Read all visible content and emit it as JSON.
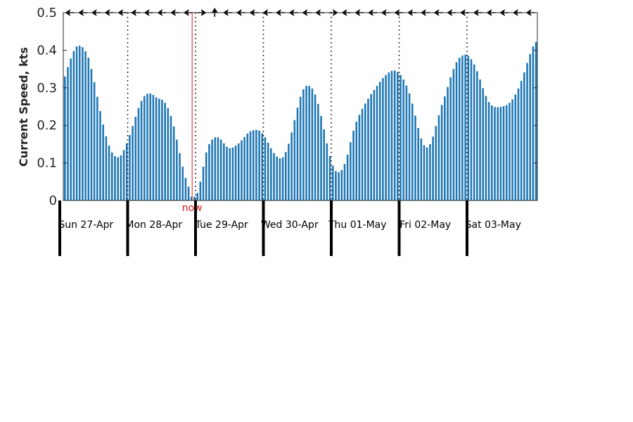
{
  "chart_data": {
    "type": "bar",
    "ylabel": "Current Speed, kts",
    "ylim": [
      0,
      0.5
    ],
    "yticks": [
      "0",
      "0.1",
      "0.2",
      "0.3",
      "0.4",
      "0.5"
    ],
    "days": [
      "Sun 27-Apr",
      "Mon 28-Apr",
      "Tue 29-Apr",
      "Wed 30-Apr",
      "Thu 01-May",
      "Fri 02-May",
      "Sat 03-May"
    ],
    "now_label": "now",
    "now_position_days": 1.95,
    "values_per_day": 24,
    "values": [
      0.33,
      0.355,
      0.378,
      0.398,
      0.41,
      0.412,
      0.408,
      0.397,
      0.38,
      0.35,
      0.315,
      0.276,
      0.238,
      0.202,
      0.171,
      0.146,
      0.128,
      0.118,
      0.115,
      0.12,
      0.134,
      0.152,
      0.174,
      0.198,
      0.223,
      0.246,
      0.265,
      0.278,
      0.284,
      0.285,
      0.281,
      0.275,
      0.271,
      0.268,
      0.26,
      0.246,
      0.225,
      0.197,
      0.162,
      0.126,
      0.09,
      0.06,
      0.037,
      0.01,
      0.01,
      0.02,
      0.05,
      0.09,
      0.128,
      0.15,
      0.162,
      0.168,
      0.168,
      0.162,
      0.152,
      0.143,
      0.139,
      0.141,
      0.146,
      0.152,
      0.16,
      0.169,
      0.178,
      0.184,
      0.187,
      0.188,
      0.186,
      0.179,
      0.168,
      0.154,
      0.139,
      0.126,
      0.117,
      0.112,
      0.115,
      0.129,
      0.151,
      0.181,
      0.214,
      0.247,
      0.276,
      0.296,
      0.305,
      0.305,
      0.298,
      0.282,
      0.257,
      0.225,
      0.189,
      0.152,
      0.118,
      0.093,
      0.078,
      0.075,
      0.081,
      0.097,
      0.122,
      0.155,
      0.186,
      0.21,
      0.228,
      0.244,
      0.258,
      0.271,
      0.283,
      0.294,
      0.305,
      0.316,
      0.326,
      0.334,
      0.341,
      0.345,
      0.346,
      0.342,
      0.334,
      0.322,
      0.306,
      0.285,
      0.258,
      0.226,
      0.193,
      0.165,
      0.147,
      0.141,
      0.15,
      0.17,
      0.198,
      0.227,
      0.254,
      0.277,
      0.302,
      0.328,
      0.35,
      0.368,
      0.38,
      0.386,
      0.388,
      0.385,
      0.376,
      0.362,
      0.344,
      0.322,
      0.299,
      0.278,
      0.262,
      0.253,
      0.249,
      0.248,
      0.249,
      0.251,
      0.254,
      0.26,
      0.269,
      0.282,
      0.298,
      0.318,
      0.341,
      0.366,
      0.39,
      0.41,
      0.422
    ],
    "direction_arrows": [
      "W",
      "W",
      "W",
      "W",
      "W",
      "W",
      "W",
      "W",
      "W",
      "W",
      "E",
      "N",
      "W",
      "W",
      "W",
      "W",
      "W",
      "W",
      "W",
      "W",
      "E",
      "W",
      "W",
      "W",
      "W",
      "W",
      "W",
      "W",
      "W",
      "W",
      "W",
      "W",
      "W",
      "W",
      "W",
      "W"
    ],
    "grid": false,
    "bar_color": "#1f77b4",
    "now_color": "#e31a1c"
  }
}
